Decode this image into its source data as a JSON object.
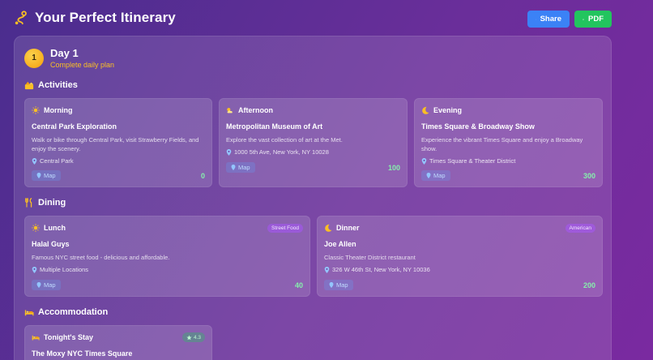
{
  "header": {
    "title": "Your Perfect Itinerary",
    "share_label": "Share",
    "pdf_label": "PDF"
  },
  "day": {
    "number": "1",
    "title": "Day 1",
    "subtitle": "Complete daily plan"
  },
  "sections": {
    "activities": "Activities",
    "dining": "Dining",
    "accommodation": "Accommodation"
  },
  "activities": [
    {
      "period": "Morning",
      "title": "Central Park Exploration",
      "description": "Walk or bike through Central Park, visit Strawberry Fields, and enjoy the scenery.",
      "location": "Central Park",
      "map_label": "Map",
      "price": "0"
    },
    {
      "period": "Afternoon",
      "title": "Metropolitan Museum of Art",
      "description": "Explore the vast collection of art at the Met.",
      "location": "1000 5th Ave, New York, NY 10028",
      "map_label": "Map",
      "price": "100"
    },
    {
      "period": "Evening",
      "title": "Times Square & Broadway Show",
      "description": "Experience the vibrant Times Square and enjoy a Broadway show.",
      "location": "Times Square & Theater District",
      "map_label": "Map",
      "price": "300"
    }
  ],
  "dining": [
    {
      "meal": "Lunch",
      "tag": "Street Food",
      "title": "Halal Guys",
      "description": "Famous NYC street food - delicious and affordable.",
      "location": "Multiple Locations",
      "map_label": "Map",
      "price": "40"
    },
    {
      "meal": "Dinner",
      "tag": "American",
      "title": "Joe Allen",
      "description": "Classic Theater District restaurant",
      "location": "326 W 46th St, New York, NY 10036",
      "map_label": "Map",
      "price": "200"
    }
  ],
  "accommodation": {
    "label": "Tonight's Stay",
    "rating": "4.3",
    "title": "The Moxy NYC Times Square"
  },
  "colors": {
    "accent_yellow": "#fbbf24",
    "share_blue": "#3b82f6",
    "pdf_green": "#22c55e",
    "price_green": "#86efac"
  }
}
